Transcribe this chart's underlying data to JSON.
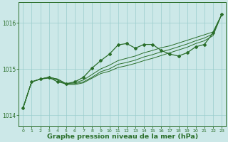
{
  "x": [
    0,
    1,
    2,
    3,
    4,
    5,
    6,
    7,
    8,
    9,
    10,
    11,
    12,
    13,
    14,
    15,
    16,
    17,
    18,
    19,
    20,
    21,
    22,
    23
  ],
  "y_main": [
    1014.15,
    1014.72,
    1014.78,
    1014.82,
    1014.72,
    1014.68,
    1014.72,
    1014.82,
    1015.02,
    1015.18,
    1015.32,
    1015.52,
    1015.55,
    1015.45,
    1015.53,
    1015.53,
    1015.4,
    1015.32,
    1015.28,
    1015.35,
    1015.48,
    1015.53,
    1015.78,
    1016.18
  ],
  "y_upper": [
    1014.15,
    1014.72,
    1014.78,
    1014.82,
    1014.78,
    1014.68,
    1014.7,
    1014.76,
    1014.88,
    1015.0,
    1015.08,
    1015.18,
    1015.23,
    1015.28,
    1015.35,
    1015.4,
    1015.46,
    1015.5,
    1015.56,
    1015.62,
    1015.68,
    1015.74,
    1015.8,
    1016.18
  ],
  "y_mid": [
    1014.15,
    1014.72,
    1014.78,
    1014.82,
    1014.78,
    1014.68,
    1014.68,
    1014.72,
    1014.82,
    1014.94,
    1015.0,
    1015.1,
    1015.14,
    1015.19,
    1015.26,
    1015.31,
    1015.37,
    1015.42,
    1015.48,
    1015.54,
    1015.61,
    1015.67,
    1015.76,
    1016.18
  ],
  "y_lower": [
    1014.15,
    1014.72,
    1014.78,
    1014.8,
    1014.76,
    1014.66,
    1014.66,
    1014.7,
    1014.8,
    1014.9,
    1014.95,
    1015.03,
    1015.07,
    1015.12,
    1015.18,
    1015.23,
    1015.29,
    1015.35,
    1015.41,
    1015.47,
    1015.55,
    1015.61,
    1015.72,
    1016.18
  ],
  "bg_color": "#cce8e8",
  "grid_color": "#99cccc",
  "line_color": "#2a6e2a",
  "xlabel": "Graphe pression niveau de la mer (hPa)",
  "ylim": [
    1013.75,
    1016.45
  ],
  "xlim": [
    -0.5,
    23.5
  ],
  "yticks": [
    1014,
    1015,
    1016
  ],
  "xticks": [
    0,
    1,
    2,
    3,
    4,
    5,
    6,
    7,
    8,
    9,
    10,
    11,
    12,
    13,
    14,
    15,
    16,
    17,
    18,
    19,
    20,
    21,
    22,
    23
  ]
}
